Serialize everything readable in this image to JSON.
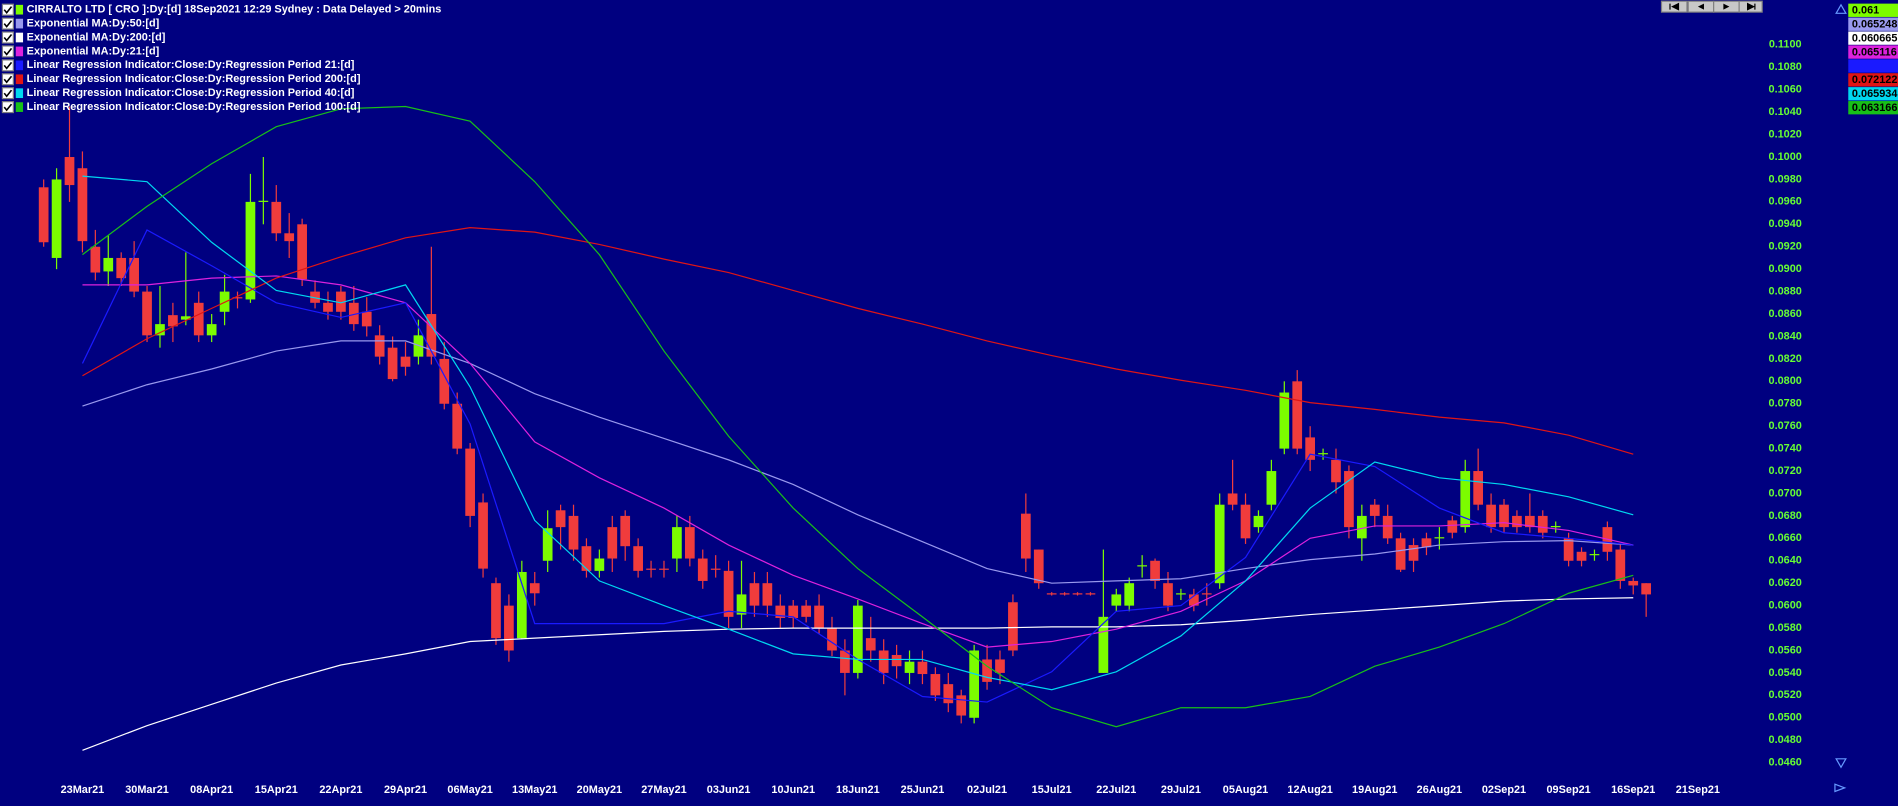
{
  "chart_data": {
    "type": "candlestick",
    "title": "CIRRALTO LTD [ CRO ]:Dy:[d]  18Sep2021 12:29 Sydney : Data Delayed > 20mins",
    "up_color": "#7cfc00",
    "down_color": "#f03c3c",
    "last": 0.061,
    "categories": [
      null,
      null,
      null,
      "23Mar21",
      null,
      null,
      null,
      null,
      "30Mar21",
      null,
      null,
      null,
      null,
      "08Apr21",
      null,
      null,
      null,
      null,
      "15Apr21",
      null,
      null,
      null,
      null,
      "22Apr21",
      null,
      null,
      null,
      null,
      "29Apr21",
      null,
      null,
      null,
      null,
      "06May21",
      null,
      null,
      null,
      null,
      "13May21",
      null,
      null,
      null,
      null,
      "20May21",
      null,
      null,
      null,
      null,
      "27May21",
      null,
      null,
      null,
      null,
      "03Jun21",
      null,
      null,
      null,
      null,
      "10Jun21",
      null,
      null,
      null,
      null,
      "18Jun21",
      null,
      null,
      null,
      null,
      "25Jun21",
      null,
      null,
      null,
      null,
      "02Jul21",
      null,
      null,
      null,
      null,
      "15Jul21",
      null,
      null,
      null,
      null,
      "22Jul21",
      null,
      null,
      null,
      null,
      "29Jul21",
      null,
      null,
      null,
      null,
      "05Aug21",
      null,
      null,
      null,
      null,
      "12Aug21",
      null,
      null,
      null,
      null,
      "19Aug21",
      null,
      null,
      null,
      null,
      "26Aug21",
      null,
      null,
      null,
      null,
      "02Sep21",
      null,
      null,
      null,
      null,
      "09Sep21",
      null,
      null,
      null,
      null,
      "16Sep21",
      null,
      null,
      null,
      null,
      "21Sep21"
    ],
    "open": [
      0.0973,
      0.091,
      0.1,
      0.099,
      0.092,
      0.0898,
      0.091,
      0.091,
      0.088,
      0.0841,
      0.0859,
      0.0855,
      0.087,
      0.0841,
      0.0862,
      0.0875,
      0.0873,
      0.096,
      0.096,
      0.0932,
      0.094,
      0.088,
      0.087,
      0.088,
      0.087,
      0.0862,
      0.0841,
      0.083,
      0.0822,
      0.0822,
      0.086,
      0.082,
      0.078,
      0.074,
      0.0692,
      0.062,
      0.06,
      0.0571,
      0.062,
      0.064,
      0.0685,
      0.068,
      0.0653,
      0.0631,
      0.067,
      0.068,
      0.0653,
      0.0633,
      0.0633,
      0.0642,
      0.067,
      0.0642,
      0.0633,
      0.0631,
      0.0592,
      0.062,
      0.062,
      0.06,
      0.06,
      0.06,
      0.06,
      0.058,
      0.056,
      0.054,
      0.0571,
      0.056,
      0.0556,
      0.054,
      0.055,
      0.0539,
      0.053,
      0.052,
      0.05,
      0.0552,
      0.0552,
      0.0603,
      0.0682,
      0.065,
      0.0611,
      0.0611,
      0.0611,
      0.0611,
      0.054,
      0.06,
      0.06,
      0.0635,
      0.064,
      0.062,
      0.061,
      0.061,
      0.0611,
      0.062,
      0.07,
      0.069,
      0.067,
      0.069,
      0.074,
      0.08,
      0.075,
      0.0735,
      0.073,
      0.072,
      0.066,
      0.069,
      0.068,
      0.066,
      0.0654,
      0.066,
      0.066,
      0.0676,
      0.067,
      0.072,
      0.069,
      0.069,
      0.068,
      0.068,
      0.068,
      0.067,
      0.066,
      0.0648,
      0.0645,
      0.067,
      0.065,
      0.0622,
      0.062,
      null,
      null,
      null,
      null
    ],
    "high": [
      0.098,
      0.099,
      0.1045,
      0.1005,
      0.0935,
      0.093,
      0.0915,
      0.0925,
      0.0885,
      0.0885,
      0.087,
      0.0915,
      0.088,
      0.086,
      0.0895,
      0.088,
      0.0985,
      0.1,
      0.0975,
      0.095,
      0.0945,
      0.089,
      0.088,
      0.0885,
      0.0885,
      0.0875,
      0.085,
      0.084,
      0.0835,
      0.0855,
      0.092,
      0.0835,
      0.079,
      0.0745,
      0.07,
      0.0625,
      0.061,
      0.064,
      0.063,
      0.0685,
      0.069,
      0.069,
      0.066,
      0.065,
      0.068,
      0.0685,
      0.066,
      0.064,
      0.064,
      0.068,
      0.068,
      0.065,
      0.0645,
      0.064,
      0.064,
      0.063,
      0.063,
      0.061,
      0.0605,
      0.0605,
      0.061,
      0.059,
      0.057,
      0.0605,
      0.059,
      0.057,
      0.0565,
      0.056,
      0.056,
      0.0545,
      0.054,
      0.0525,
      0.0565,
      0.0565,
      0.056,
      0.061,
      0.07,
      0.065,
      0.0612,
      0.0612,
      0.0612,
      0.0612,
      0.065,
      0.0615,
      0.0625,
      0.0645,
      0.0642,
      0.063,
      0.0615,
      0.0615,
      0.062,
      0.07,
      0.073,
      0.07,
      0.0685,
      0.073,
      0.08,
      0.081,
      0.076,
      0.074,
      0.074,
      0.0725,
      0.069,
      0.0695,
      0.069,
      0.0665,
      0.066,
      0.0665,
      0.067,
      0.068,
      0.073,
      0.074,
      0.07,
      0.0695,
      0.0685,
      0.07,
      0.0685,
      0.0675,
      0.0665,
      0.0652,
      0.065,
      0.0675,
      0.0655,
      0.0625,
      0.062,
      null,
      null,
      null,
      null
    ],
    "low": [
      0.092,
      0.09,
      0.096,
      0.0915,
      0.089,
      0.0885,
      0.0885,
      0.0875,
      0.0835,
      0.083,
      0.0835,
      0.085,
      0.0835,
      0.0835,
      0.085,
      0.0865,
      0.087,
      0.094,
      0.0925,
      0.091,
      0.0885,
      0.0865,
      0.0855,
      0.0855,
      0.0845,
      0.084,
      0.0815,
      0.08,
      0.0805,
      0.0815,
      0.0815,
      0.0775,
      0.0735,
      0.067,
      0.0625,
      0.0565,
      0.055,
      0.057,
      0.06,
      0.063,
      0.065,
      0.064,
      0.0625,
      0.0625,
      0.063,
      0.064,
      0.0625,
      0.0625,
      0.0625,
      0.063,
      0.0635,
      0.0615,
      0.0625,
      0.058,
      0.058,
      0.059,
      0.059,
      0.058,
      0.058,
      0.0585,
      0.0575,
      0.0555,
      0.052,
      0.0535,
      0.055,
      0.053,
      0.0535,
      0.053,
      0.053,
      0.0515,
      0.0505,
      0.0495,
      0.0495,
      0.0525,
      0.053,
      0.0555,
      0.063,
      0.0615,
      0.0609,
      0.0609,
      0.0609,
      0.0609,
      0.054,
      0.0595,
      0.0595,
      0.0625,
      0.0615,
      0.0595,
      0.0605,
      0.0595,
      0.06,
      0.0615,
      0.0685,
      0.0655,
      0.0665,
      0.0685,
      0.0735,
      0.0735,
      0.072,
      0.073,
      0.07,
      0.066,
      0.064,
      0.067,
      0.0655,
      0.063,
      0.063,
      0.0645,
      0.065,
      0.066,
      0.0665,
      0.0685,
      0.0665,
      0.0665,
      0.0665,
      0.0665,
      0.066,
      0.0665,
      0.0635,
      0.0635,
      0.064,
      0.064,
      0.0615,
      0.061,
      0.059,
      null,
      null,
      null,
      null
    ],
    "close": [
      0.0924,
      0.098,
      0.0975,
      0.0925,
      0.0897,
      0.091,
      0.0892,
      0.088,
      0.0841,
      0.0851,
      0.0849,
      0.0858,
      0.0841,
      0.0851,
      0.088,
      0.0874,
      0.096,
      0.0961,
      0.0932,
      0.0925,
      0.0891,
      0.087,
      0.0862,
      0.0862,
      0.0851,
      0.0849,
      0.0822,
      0.0802,
      0.0813,
      0.0841,
      0.0822,
      0.078,
      0.074,
      0.068,
      0.0633,
      0.0571,
      0.056,
      0.063,
      0.0611,
      0.0669,
      0.067,
      0.065,
      0.0631,
      0.0642,
      0.0642,
      0.0653,
      0.0631,
      0.0632,
      0.0632,
      0.067,
      0.0642,
      0.0622,
      0.0632,
      0.059,
      0.061,
      0.06,
      0.06,
      0.0589,
      0.0589,
      0.059,
      0.058,
      0.056,
      0.054,
      0.06,
      0.056,
      0.054,
      0.0546,
      0.055,
      0.0539,
      0.052,
      0.0513,
      0.0502,
      0.056,
      0.0532,
      0.054,
      0.056,
      0.0642,
      0.062,
      0.061,
      0.061,
      0.061,
      0.061,
      0.059,
      0.061,
      0.062,
      0.0636,
      0.0622,
      0.06,
      0.0611,
      0.06,
      0.061,
      0.069,
      0.069,
      0.066,
      0.068,
      0.072,
      0.079,
      0.074,
      0.073,
      0.0736,
      0.071,
      0.067,
      0.068,
      0.068,
      0.066,
      0.0632,
      0.064,
      0.0652,
      0.0661,
      0.0665,
      0.072,
      0.069,
      0.067,
      0.067,
      0.067,
      0.067,
      0.0665,
      0.0671,
      0.064,
      0.064,
      0.0646,
      0.0648,
      0.0622,
      0.0618,
      0.061,
      null,
      null,
      null,
      null
    ],
    "series": [
      {
        "name": "Exponential MA:Dy:50:[d]",
        "color": "#9999ee",
        "last": 0.065248,
        "x": [
          "23Mar21",
          "30Mar21",
          "08Apr21",
          "15Apr21",
          "22Apr21",
          "29Apr21",
          "06May21",
          "13May21",
          "20May21",
          "27May21",
          "03Jun21",
          "10Jun21",
          "18Jun21",
          "25Jun21",
          "02Jul21",
          "15Jul21",
          "22Jul21",
          "29Jul21",
          "05Aug21",
          "12Aug21",
          "19Aug21",
          "26Aug21",
          "02Sep21",
          "09Sep21",
          "16Sep21"
        ],
        "values": [
          0.0778,
          0.0797,
          0.0811,
          0.0827,
          0.0836,
          0.0836,
          0.0816,
          0.0789,
          0.0768,
          0.0749,
          0.073,
          0.0708,
          0.0681,
          0.0657,
          0.0633,
          0.062,
          0.0622,
          0.0624,
          0.0633,
          0.0641,
          0.0646,
          0.0654,
          0.0657,
          0.0658,
          0.0654
        ]
      },
      {
        "name": "Exponential MA:Dy:200:[d]",
        "color": "#ffffff",
        "last": 0.060665,
        "x": [
          "23Mar21",
          "30Mar21",
          "08Apr21",
          "15Apr21",
          "22Apr21",
          "29Apr21",
          "06May21",
          "13May21",
          "20May21",
          "27May21",
          "03Jun21",
          "10Jun21",
          "18Jun21",
          "25Jun21",
          "02Jul21",
          "15Jul21",
          "22Jul21",
          "29Jul21",
          "05Aug21",
          "12Aug21",
          "19Aug21",
          "26Aug21",
          "02Sep21",
          "09Sep21",
          "16Sep21"
        ],
        "values": [
          0.0471,
          0.0493,
          0.0512,
          0.0531,
          0.0547,
          0.0557,
          0.0568,
          0.0571,
          0.0574,
          0.0577,
          0.0579,
          0.058,
          0.058,
          0.058,
          0.058,
          0.0581,
          0.0581,
          0.0583,
          0.0587,
          0.0592,
          0.0596,
          0.06,
          0.0604,
          0.0606,
          0.0607
        ]
      },
      {
        "name": "Exponential MA:Dy:21:[d]",
        "color": "#dd22dd",
        "last": 0.065116,
        "x": [
          "23Mar21",
          "30Mar21",
          "08Apr21",
          "15Apr21",
          "22Apr21",
          "29Apr21",
          "06May21",
          "13May21",
          "20May21",
          "27May21",
          "03Jun21",
          "10Jun21",
          "18Jun21",
          "25Jun21",
          "02Jul21",
          "15Jul21",
          "22Jul21",
          "29Jul21",
          "05Aug21",
          "12Aug21",
          "19Aug21",
          "26Aug21",
          "02Sep21",
          "09Sep21",
          "16Sep21"
        ],
        "values": [
          0.0886,
          0.0886,
          0.0892,
          0.0894,
          0.0886,
          0.087,
          0.0816,
          0.0746,
          0.0714,
          0.0687,
          0.0654,
          0.0627,
          0.0606,
          0.0584,
          0.0563,
          0.0568,
          0.0579,
          0.0595,
          0.0622,
          0.066,
          0.0671,
          0.0671,
          0.0674,
          0.0667,
          0.0654
        ]
      },
      {
        "name": "Linear Regression Indicator:Close:Dy:Regression Period 21:[d]",
        "color": "#1a1aff",
        "x": [
          "23Mar21",
          "30Mar21",
          "08Apr21",
          "15Apr21",
          "22Apr21",
          "29Apr21",
          "06May21",
          "13May21",
          "20May21",
          "27May21",
          "03Jun21",
          "10Jun21",
          "18Jun21",
          "25Jun21",
          "02Jul21",
          "15Jul21",
          "22Jul21",
          "29Jul21",
          "05Aug21",
          "12Aug21",
          "19Aug21",
          "26Aug21",
          "02Sep21",
          "09Sep21",
          "16Sep21"
        ],
        "values": [
          0.0816,
          0.0935,
          0.0903,
          0.087,
          0.0857,
          0.087,
          0.0762,
          0.0584,
          0.0584,
          0.0584,
          0.0595,
          0.059,
          0.0552,
          0.0519,
          0.0514,
          0.0541,
          0.0595,
          0.06,
          0.0643,
          0.0735,
          0.0724,
          0.0687,
          0.0665,
          0.066,
          0.0654
        ]
      },
      {
        "name": "Linear Regression Indicator:Close:Dy:Regression Period 200:[d]",
        "color": "#e01515",
        "last": 0.072122,
        "x": [
          "23Mar21",
          "30Mar21",
          "08Apr21",
          "15Apr21",
          "22Apr21",
          "29Apr21",
          "06May21",
          "13May21",
          "20May21",
          "27May21",
          "03Jun21",
          "10Jun21",
          "18Jun21",
          "25Jun21",
          "02Jul21",
          "15Jul21",
          "22Jul21",
          "29Jul21",
          "05Aug21",
          "12Aug21",
          "19Aug21",
          "26Aug21",
          "02Sep21",
          "09Sep21",
          "16Sep21"
        ],
        "values": [
          0.0805,
          0.0838,
          0.0865,
          0.0892,
          0.0911,
          0.0928,
          0.0937,
          0.0933,
          0.0922,
          0.0909,
          0.0897,
          0.0881,
          0.0865,
          0.0851,
          0.0836,
          0.0823,
          0.0811,
          0.0801,
          0.0792,
          0.0781,
          0.0775,
          0.0768,
          0.0763,
          0.0752,
          0.0735
        ]
      },
      {
        "name": "Linear Regression Indicator:Close:Dy:Regression Period 40:[d]",
        "color": "#00d8f0",
        "last": 0.065934,
        "x": [
          "23Mar21",
          "30Mar21",
          "08Apr21",
          "15Apr21",
          "22Apr21",
          "29Apr21",
          "06May21",
          "13May21",
          "20May21",
          "27May21",
          "03Jun21",
          "10Jun21",
          "18Jun21",
          "25Jun21",
          "02Jul21",
          "15Jul21",
          "22Jul21",
          "29Jul21",
          "05Aug21",
          "12Aug21",
          "19Aug21",
          "26Aug21",
          "02Sep21",
          "09Sep21",
          "16Sep21"
        ],
        "values": [
          0.0983,
          0.0978,
          0.0924,
          0.0881,
          0.087,
          0.0886,
          0.0795,
          0.0676,
          0.0622,
          0.06,
          0.0579,
          0.0557,
          0.0552,
          0.0552,
          0.0536,
          0.0525,
          0.0541,
          0.0573,
          0.0622,
          0.0687,
          0.0728,
          0.0714,
          0.0708,
          0.0697,
          0.0681
        ]
      },
      {
        "name": "Linear Regression Indicator:Close:Dy:Regression Period 100:[d]",
        "color": "#18c018",
        "last": 0.063166,
        "x": [
          "23Mar21",
          "30Mar21",
          "08Apr21",
          "15Apr21",
          "22Apr21",
          "29Apr21",
          "06May21",
          "13May21",
          "20May21",
          "27May21",
          "03Jun21",
          "10Jun21",
          "18Jun21",
          "25Jun21",
          "02Jul21",
          "15Jul21",
          "22Jul21",
          "29Jul21",
          "05Aug21",
          "12Aug21",
          "19Aug21",
          "26Aug21",
          "02Sep21",
          "09Sep21",
          "16Sep21"
        ],
        "values": [
          0.0913,
          0.0956,
          0.0994,
          0.1027,
          0.1043,
          0.1045,
          0.1032,
          0.0978,
          0.0913,
          0.0827,
          0.0751,
          0.0687,
          0.0633,
          0.059,
          0.0546,
          0.0509,
          0.0492,
          0.0509,
          0.0509,
          0.0519,
          0.0546,
          0.0563,
          0.0584,
          0.0611,
          0.0627
        ]
      }
    ],
    "ylim": [
      0.0444,
      0.114
    ],
    "yticks": [
      {
        "value": 0.046,
        "label": "0.0460"
      },
      {
        "value": 0.048,
        "label": "0.0480"
      },
      {
        "value": 0.05,
        "label": "0.0500"
      },
      {
        "value": 0.052,
        "label": "0.0520"
      },
      {
        "value": 0.054,
        "label": "0.0540"
      },
      {
        "value": 0.056,
        "label": "0.0560"
      },
      {
        "value": 0.058,
        "label": "0.0580"
      },
      {
        "value": 0.06,
        "label": "0.0600"
      },
      {
        "value": 0.062,
        "label": "0.0620"
      },
      {
        "value": 0.064,
        "label": "0.0640"
      },
      {
        "value": 0.066,
        "label": "0.0660"
      },
      {
        "value": 0.068,
        "label": "0.0680"
      },
      {
        "value": 0.07,
        "label": "0.0700"
      },
      {
        "value": 0.072,
        "label": "0.0720"
      },
      {
        "value": 0.074,
        "label": "0.0740"
      },
      {
        "value": 0.076,
        "label": "0.0760"
      },
      {
        "value": 0.078,
        "label": "0.0780"
      },
      {
        "value": 0.08,
        "label": "0.0800"
      },
      {
        "value": 0.082,
        "label": "0.0820"
      },
      {
        "value": 0.084,
        "label": "0.0840"
      },
      {
        "value": 0.086,
        "label": "0.0860"
      },
      {
        "value": 0.088,
        "label": "0.0880"
      },
      {
        "value": 0.09,
        "label": "0.0900"
      },
      {
        "value": 0.092,
        "label": "0.0920"
      },
      {
        "value": 0.094,
        "label": "0.0940"
      },
      {
        "value": 0.096,
        "label": "0.0960"
      },
      {
        "value": 0.098,
        "label": "0.0980"
      },
      {
        "value": 0.1,
        "label": "0.1000"
      },
      {
        "value": 0.102,
        "label": "0.1020"
      },
      {
        "value": 0.104,
        "label": "0.1040"
      },
      {
        "value": 0.106,
        "label": "0.1060"
      },
      {
        "value": 0.108,
        "label": "0.1080"
      },
      {
        "value": 0.11,
        "label": "0.1100"
      }
    ],
    "grid": false
  }
}
